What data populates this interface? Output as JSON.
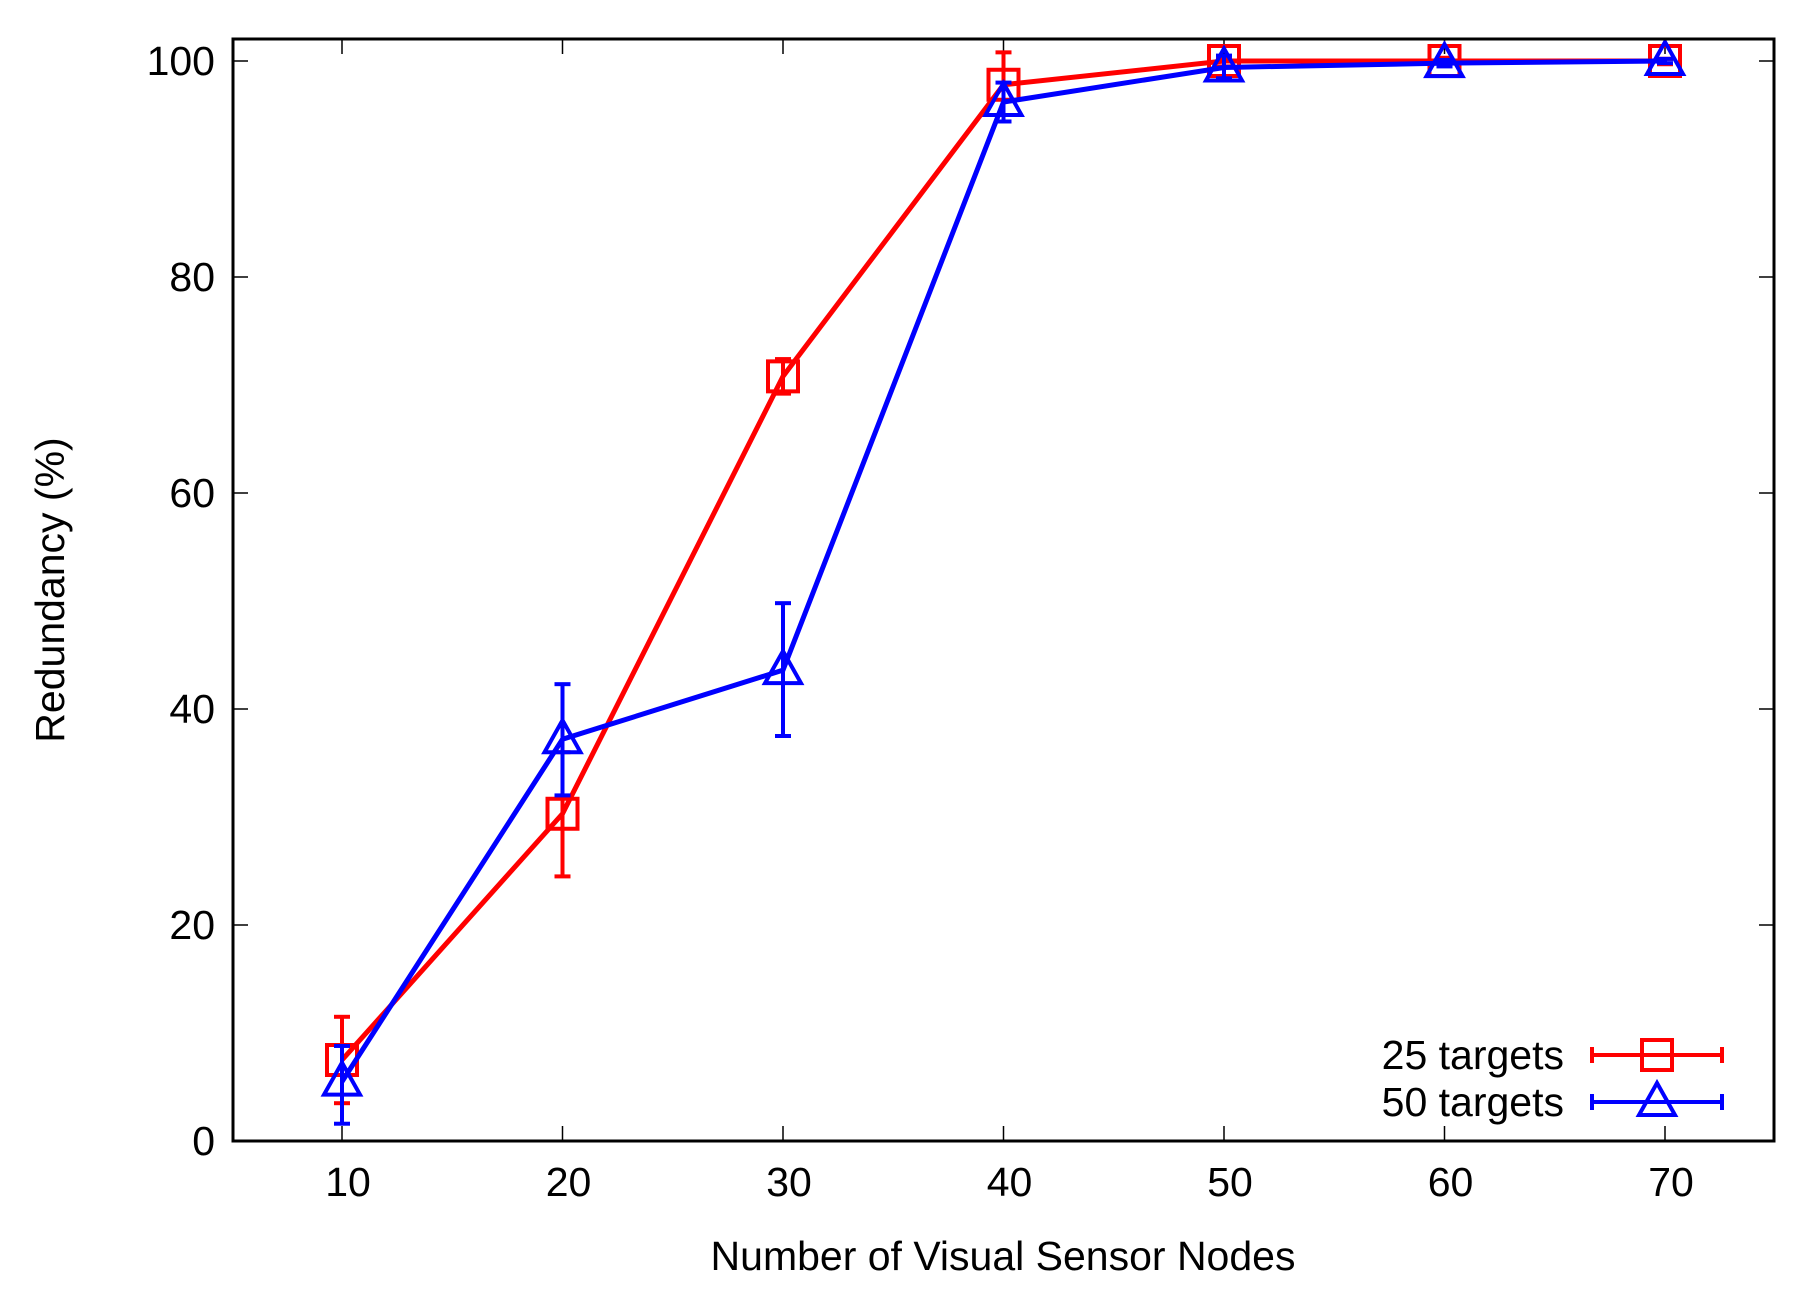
{
  "chart_data": {
    "type": "line",
    "title": "",
    "xlabel": "Number of Visual Sensor Nodes",
    "ylabel": "Redundancy (%)",
    "x": [
      10,
      20,
      30,
      40,
      50,
      60,
      70
    ],
    "xlim": [
      5,
      75
    ],
    "ylim": [
      0,
      102
    ],
    "xticks": [
      "10",
      "20",
      "30",
      "40",
      "50",
      "60",
      "70"
    ],
    "yticks": [
      "0",
      "20",
      "40",
      "60",
      "80",
      "100"
    ],
    "grid": false,
    "legend_position": "bottom-right",
    "series": [
      {
        "name": "25 targets",
        "color": "#ff0000",
        "marker": "square",
        "values": [
          7.5,
          30.3,
          70.8,
          97.8,
          100,
          100,
          100
        ],
        "err_low": [
          3.5,
          24.5,
          69.2,
          95.0,
          99.5,
          99.6,
          99.7
        ],
        "err_high": [
          11.5,
          36.0,
          72.4,
          100.8,
          100.3,
          100.3,
          100.2
        ]
      },
      {
        "name": "50 targets",
        "color": "#0000ff",
        "marker": "triangle",
        "values": [
          5.5,
          37.2,
          43.6,
          96.2,
          99.4,
          99.8,
          100
        ],
        "err_low": [
          1.6,
          32.0,
          37.5,
          94.4,
          98.4,
          99.5,
          99.8
        ],
        "err_high": [
          8.8,
          42.3,
          49.8,
          98.0,
          100.5,
          100.1,
          100.2
        ]
      }
    ]
  }
}
